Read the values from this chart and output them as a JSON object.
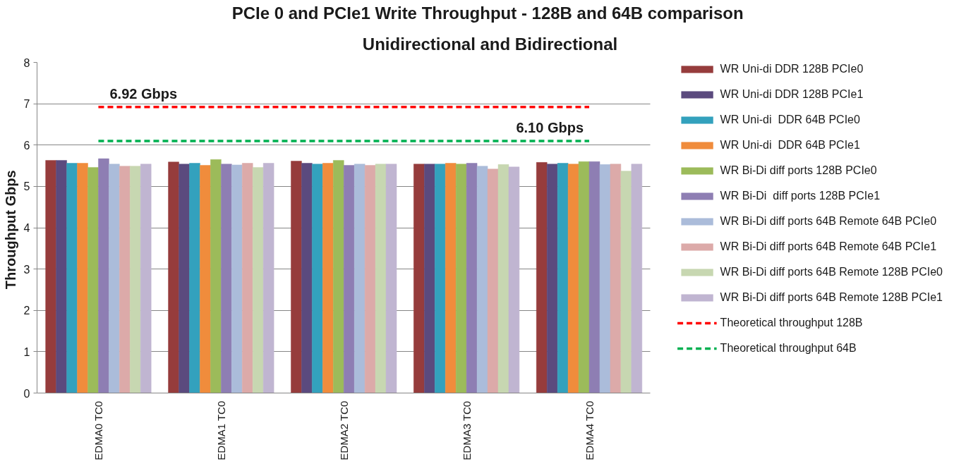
{
  "chart_data": {
    "type": "bar",
    "title": "PCIe 0 and PCIe1 Write Throughput - 128B  and 64B comparison",
    "subtitle": "Unidirectional and Bidirectional",
    "ylabel": "Throughput  Gbps",
    "categories": [
      "EDMA0 TC0",
      "EDMA1 TC0",
      "EDMA2 TC0",
      "EDMA3 TC0",
      "EDMA4 TC0"
    ],
    "series": [
      {
        "name": "WR Uni-di DDR 128B PCIe0",
        "color": "#963c3c",
        "values": [
          5.63,
          5.59,
          5.61,
          5.54,
          5.58
        ]
      },
      {
        "name": "WR Uni-di DDR 128B PCIe1",
        "color": "#5b4a7e",
        "values": [
          5.63,
          5.54,
          5.56,
          5.54,
          5.54
        ]
      },
      {
        "name": "WR Uni-di  DDR 64B PCIe0",
        "color": "#33a1bd",
        "values": [
          5.56,
          5.56,
          5.54,
          5.54,
          5.56
        ]
      },
      {
        "name": "WR Uni-di  DDR 64B PCIe1",
        "color": "#f08c3c",
        "values": [
          5.56,
          5.51,
          5.56,
          5.56,
          5.54
        ]
      },
      {
        "name": "WR Bi-Di diff ports 128B PCIe0",
        "color": "#9cbb5a",
        "values": [
          5.46,
          5.65,
          5.63,
          5.54,
          5.6
        ]
      },
      {
        "name": "WR Bi-Di  diff ports 128B PCIe1",
        "color": "#8e7eb3",
        "values": [
          5.67,
          5.54,
          5.51,
          5.56,
          5.6
        ]
      },
      {
        "name": "WR Bi-Di diff ports 64B Remote 64B PCIe0",
        "color": "#abbcda",
        "values": [
          5.54,
          5.52,
          5.54,
          5.49,
          5.53
        ]
      },
      {
        "name": "WR Bi-Di diff ports 64B Remote 64B PCIe1",
        "color": "#dcaaa9",
        "values": [
          5.49,
          5.56,
          5.51,
          5.42,
          5.54
        ]
      },
      {
        "name": "WR Bi-Di diff ports 64B Remote 128B PCIe0",
        "color": "#c7d7b1",
        "values": [
          5.49,
          5.46,
          5.54,
          5.53,
          5.37
        ]
      },
      {
        "name": "WR Bi-Di diff ports 64B Remote 128B PCIe1",
        "color": "#c0b5d1",
        "values": [
          5.54,
          5.56,
          5.54,
          5.47,
          5.54
        ]
      },
      {
        "name": "Theoretical throughput 128B",
        "type": "line",
        "color": "#ff0000",
        "line_style": "dashed",
        "values": [
          6.92,
          6.92,
          6.92,
          6.92,
          6.92
        ],
        "value_labels": [
          "6.92 Gbps",
          null,
          null,
          null,
          null
        ]
      },
      {
        "name": "Theoretical throughput 64B",
        "type": "line",
        "color": "#00b050",
        "line_style": "dashed",
        "values": [
          6.1,
          6.1,
          6.1,
          6.1,
          6.1
        ],
        "value_labels": [
          null,
          null,
          null,
          null,
          "6.10 Gbps"
        ]
      }
    ],
    "ylim": [
      0,
      8
    ],
    "yticks": [
      0,
      1,
      2,
      3,
      4,
      5,
      6,
      7,
      8
    ],
    "grid": "y",
    "legend": "right"
  }
}
